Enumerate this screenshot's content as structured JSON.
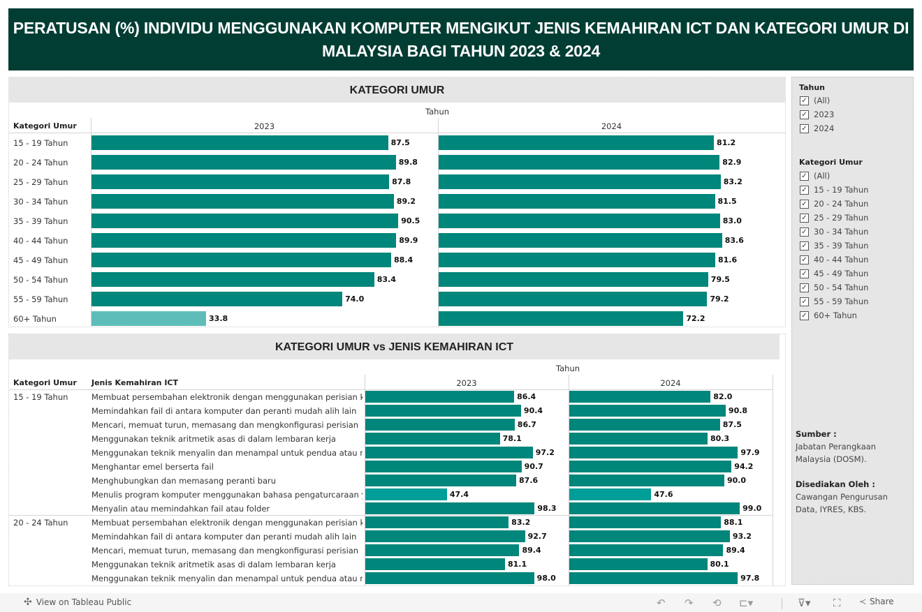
{
  "title": "PERATUSAN (%) INDIVIDU MENGGUNAKAN KOMPUTER MENGIKUT JENIS KEMAHIRAN ICT DAN KATEGORI UMUR DI MALAYSIA BAGI TAHUN 2023 & 2024",
  "chart_data": [
    {
      "type": "bar",
      "orientation": "horizontal",
      "title": "KATEGORI UMUR",
      "column_header": "Tahun",
      "row_header": "Kategori Umur",
      "categories": [
        "15 - 19 Tahun",
        "20 - 24 Tahun",
        "25 - 29 Tahun",
        "30 - 34 Tahun",
        "35 - 39 Tahun",
        "40 - 44 Tahun",
        "45 - 49 Tahun",
        "50 - 54 Tahun",
        "55 - 59 Tahun",
        "60+ Tahun"
      ],
      "series": [
        {
          "name": "2023",
          "values": [
            87.5,
            89.8,
            87.8,
            89.2,
            90.5,
            89.9,
            88.4,
            83.4,
            74.0,
            33.8
          ]
        },
        {
          "name": "2024",
          "values": [
            81.2,
            82.9,
            83.2,
            81.5,
            83.0,
            83.6,
            81.6,
            79.5,
            79.2,
            72.2
          ]
        }
      ],
      "xlim": [
        0,
        102
      ],
      "grid": false
    },
    {
      "type": "bar",
      "orientation": "horizontal",
      "title": "KATEGORI UMUR vs JENIS KEMAHIRAN ICT",
      "column_header": "Tahun",
      "row_headers": [
        "Kategori Umur",
        "Jenis Kemahiran ICT"
      ],
      "groups": [
        {
          "category": "15 - 19 Tahun",
          "skills": [
            "Membuat persembahan elektronik dengan menggunakan perisian k..",
            "Memindahkan fail di antara komputer dan peranti mudah alih lain",
            "Mencari, memuat turun, memasang dan mengkonfigurasi perisian",
            "Menggunakan teknik aritmetik asas di dalam lembaran kerja",
            "Menggunakan teknik menyalin dan menampal untuk pendua atau m..",
            "Menghantar emel berserta fail",
            "Menghubungkan dan memasang peranti baru",
            "Menulis program komputer menggunakan bahasa pengaturcaraan y..",
            "Menyalin atau memindahkan fail atau folder"
          ],
          "series": [
            {
              "name": "2023",
              "values": [
                86.4,
                90.4,
                86.7,
                78.1,
                97.2,
                90.7,
                87.6,
                47.4,
                98.3
              ]
            },
            {
              "name": "2024",
              "values": [
                82.0,
                90.8,
                87.5,
                80.3,
                97.9,
                94.2,
                90.0,
                47.6,
                99.0
              ]
            }
          ]
        },
        {
          "category": "20 - 24 Tahun",
          "skills": [
            "Membuat persembahan elektronik dengan menggunakan perisian k..",
            "Memindahkan fail di antara komputer dan peranti mudah alih lain",
            "Mencari, memuat turun, memasang dan mengkonfigurasi perisian",
            "Menggunakan teknik aritmetik asas di dalam lembaran kerja",
            "Menggunakan teknik menyalin dan menampal untuk pendua atau m.."
          ],
          "series": [
            {
              "name": "2023",
              "values": [
                83.2,
                92.7,
                89.4,
                81.1,
                98.0
              ]
            },
            {
              "name": "2024",
              "values": [
                88.1,
                93.2,
                89.4,
                80.1,
                97.8
              ]
            }
          ]
        }
      ],
      "xlim": [
        0,
        118
      ],
      "grid": false
    }
  ],
  "colors": {
    "title_bg": "#023d33",
    "bar_high": "#00867a",
    "bar_mid": "#009e99",
    "bar_low": "#5fbdb9"
  },
  "filters": {
    "tahun": {
      "title": "Tahun",
      "items": [
        "(All)",
        "2023",
        "2024"
      ]
    },
    "kategori": {
      "title": "Kategori Umur",
      "items": [
        "(All)",
        "15 - 19 Tahun",
        "20 - 24 Tahun",
        "25 - 29 Tahun",
        "30 - 34 Tahun",
        "35 - 39 Tahun",
        "40 - 44 Tahun",
        "45 - 49 Tahun",
        "50 - 54 Tahun",
        "55 - 59 Tahun",
        "60+ Tahun"
      ]
    },
    "check_icon": "checkbox-checked-icon"
  },
  "notes": {
    "source_label": "Sumber :",
    "source_lines": [
      "Jabatan Perangkaan",
      "Malaysia (DOSM)."
    ],
    "prepared_label": "Disediakan Oleh :",
    "prepared_lines": [
      "Cawangan Pengurusan",
      "Data, IYRES, KBS."
    ]
  },
  "footer": {
    "view_label": "View on Tableau Public",
    "share_label": "Share"
  }
}
